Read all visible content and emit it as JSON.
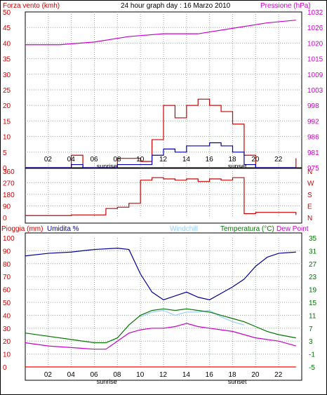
{
  "title": "24 hour graph day : 16 Marzo 2010",
  "colors": {
    "wind": "#cc0000",
    "pressure": "#cc00cc",
    "gust": "#0000aa",
    "dir": "#cc0000",
    "humidity": "#000099",
    "windchill": "#99ccff",
    "temp": "#007700",
    "dew": "#cc00cc",
    "rain": "#ff0000",
    "grid": "#9aa79a"
  },
  "x_ticks": [
    "02",
    "04",
    "06",
    "08",
    "10",
    "12",
    "14",
    "16",
    "18",
    "20",
    "22"
  ],
  "sunrise_label": "sunrise",
  "sunset_label": "sunset",
  "chart_data": [
    {
      "type": "line",
      "panel": "wind",
      "left_label": "Forza vento (kmh)",
      "right_label": "Pressione (hPa)",
      "left_ticks": [
        "50",
        "45",
        "40",
        "35",
        "30",
        "25",
        "20",
        "15",
        "10",
        "5",
        "0"
      ],
      "right_ticks": [
        "1032",
        "1026",
        "1020",
        "1015",
        "1009",
        "1003",
        "998",
        "992",
        "986",
        "981",
        "975"
      ],
      "ylim_left": [
        0,
        50
      ],
      "ylim_right": [
        975,
        1032
      ],
      "pressure": {
        "x": [
          0,
          3,
          6,
          9,
          12,
          15,
          18,
          21,
          23.5
        ],
        "y": [
          1020,
          1020,
          1021,
          1023,
          1024,
          1024,
          1026,
          1028,
          1029
        ]
      },
      "wind_speed": {
        "x": [
          0,
          3,
          4,
          5,
          6,
          7,
          8,
          9,
          10,
          11,
          12,
          13,
          14,
          15,
          16,
          17,
          18,
          19,
          20,
          21,
          22,
          23.5
        ],
        "y": [
          0,
          0,
          4,
          0,
          0,
          0,
          3,
          3,
          2,
          9,
          20,
          16,
          20,
          22,
          20,
          18,
          14,
          4,
          0,
          0,
          0,
          3
        ]
      },
      "wind_gust": {
        "x": [
          0,
          3,
          4,
          5,
          6,
          7,
          8,
          9,
          10,
          11,
          12,
          13,
          14,
          15,
          16,
          17,
          18,
          19,
          20,
          21,
          22,
          23.5
        ],
        "y": [
          0,
          0,
          1,
          0,
          0,
          0,
          1,
          1,
          1,
          4,
          6,
          5,
          7,
          7,
          8,
          7,
          5,
          1,
          0,
          0,
          0,
          0
        ]
      }
    },
    {
      "type": "line",
      "panel": "direction",
      "left_ticks": [
        "360",
        "270",
        "180",
        "90",
        "0"
      ],
      "right_ticks": [
        "N",
        "W",
        "S",
        "E",
        "N"
      ],
      "ylim": [
        0,
        360
      ],
      "direction": {
        "x": [
          0,
          2,
          4,
          5,
          7,
          8,
          9,
          10,
          11,
          12,
          13,
          14,
          15,
          16,
          17,
          18,
          19,
          20,
          22,
          23.5
        ],
        "y": [
          15,
          15,
          20,
          20,
          70,
          80,
          110,
          290,
          310,
          300,
          290,
          300,
          280,
          300,
          290,
          310,
          30,
          40,
          40,
          20
        ]
      }
    },
    {
      "type": "line",
      "panel": "temperature",
      "left_label1": "Pioggia (mm)",
      "left_label2": "Umidita %",
      "windchill_label": "Windchill",
      "temp_label": "Temperatura (°C)",
      "dew_label": "Dew Point",
      "left_ticks": [
        "100",
        "90",
        "80",
        "70",
        "60",
        "50",
        "40",
        "30",
        "20",
        "10",
        "0"
      ],
      "right_ticks": [
        "35",
        "31",
        "27",
        "23",
        "19",
        "15",
        "11",
        "7",
        "3",
        "-1",
        "-5"
      ],
      "ylim_left": [
        0,
        100
      ],
      "ylim_right": [
        -5,
        35
      ],
      "humidity": {
        "x": [
          0,
          2,
          4,
          6,
          8,
          9,
          10,
          11,
          12,
          13,
          14,
          15,
          16,
          17,
          18,
          19,
          20,
          21,
          22,
          23.5
        ],
        "y": [
          86,
          88,
          89,
          91,
          92,
          91,
          72,
          58,
          52,
          55,
          58,
          54,
          52,
          57,
          62,
          68,
          78,
          85,
          88,
          89
        ]
      },
      "temperature": {
        "x": [
          0,
          2,
          4,
          6,
          7,
          8,
          9,
          10,
          11,
          12,
          13,
          14,
          15,
          16,
          17,
          18,
          19,
          20,
          21,
          22,
          23.5
        ],
        "y": [
          5.5,
          4.5,
          3.5,
          2.5,
          2.5,
          4,
          8,
          11,
          12.5,
          13,
          12.5,
          13,
          12.5,
          12,
          11,
          10,
          9,
          7.5,
          6,
          5,
          4
        ]
      },
      "windchill": {
        "x": [
          10,
          11,
          12,
          13,
          14,
          15,
          16,
          17,
          18,
          19
        ],
        "y": [
          10.5,
          12,
          12.5,
          11,
          12,
          12,
          12.5,
          10.5,
          9,
          8
        ]
      },
      "dewpoint": {
        "x": [
          0,
          2,
          4,
          6,
          7,
          8,
          9,
          10,
          11,
          12,
          13,
          14,
          15,
          16,
          17,
          18,
          19,
          20,
          21,
          22,
          23.5
        ],
        "y": [
          2.5,
          1.5,
          1,
          0.5,
          0.5,
          3,
          5.5,
          6.5,
          7,
          7,
          7.5,
          8.5,
          7.5,
          7,
          6.5,
          6,
          5,
          4,
          3.5,
          3,
          1.5
        ]
      },
      "rain": {
        "x": [
          0,
          23.5
        ],
        "y": [
          0,
          0
        ]
      }
    }
  ]
}
